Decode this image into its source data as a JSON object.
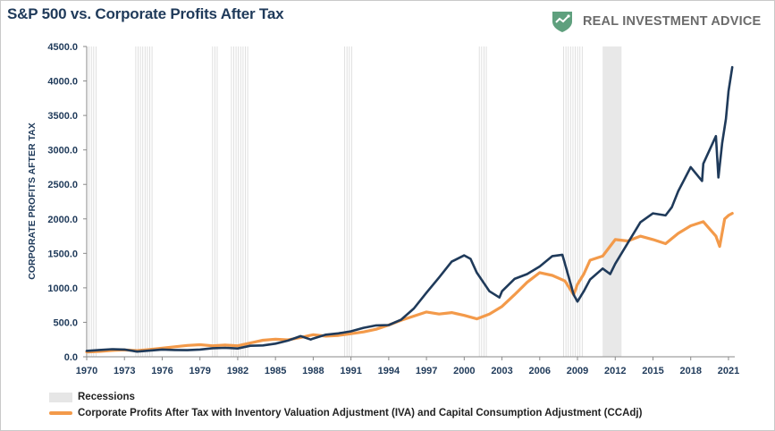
{
  "header": {
    "title": "S&P 500 vs. Corporate Profits After Tax",
    "brand": "REAL INVESTMENT ADVICE"
  },
  "colors": {
    "sp500": "#1f3a5a",
    "profits": "#f39a4a",
    "recession": "#e8e8e8",
    "brand_green": "#5fa07e"
  },
  "chart_data": {
    "type": "line",
    "title": "S&P 500 vs. Corporate Profits After Tax",
    "ylabel": "CORPORATE PROFITS AFTER TAX",
    "xlabel": "",
    "ylim": [
      0,
      4500
    ],
    "xlim": [
      1970,
      2021.5
    ],
    "y_ticks": [
      "0.0",
      "500.0",
      "1000.0",
      "1500.0",
      "2000.0",
      "2500.0",
      "3000.0",
      "3500.0",
      "4000.0",
      "4500.0"
    ],
    "x_ticks": [
      "1970",
      "1973",
      "1976",
      "1979",
      "1982",
      "1985",
      "1988",
      "1991",
      "1994",
      "1997",
      "2000",
      "2003",
      "2006",
      "2009",
      "2012",
      "2015",
      "2018",
      "2021"
    ],
    "legend_position": "bottom-left",
    "grid": false,
    "recessions": [
      [
        1970.0,
        1970.9
      ],
      [
        1973.9,
        1975.2
      ],
      [
        1980.0,
        1980.5
      ],
      [
        1981.5,
        1982.9
      ],
      [
        1990.5,
        1991.2
      ],
      [
        2001.2,
        2001.9
      ],
      [
        2007.9,
        2009.5
      ],
      [
        2011.0,
        2012.5
      ]
    ],
    "series": [
      {
        "name": "",
        "color": "#1f3a5a",
        "points": [
          [
            1970,
            85
          ],
          [
            1971,
            98
          ],
          [
            1972,
            110
          ],
          [
            1973,
            105
          ],
          [
            1974,
            75
          ],
          [
            1975,
            90
          ],
          [
            1976,
            105
          ],
          [
            1977,
            98
          ],
          [
            1978,
            96
          ],
          [
            1979,
            105
          ],
          [
            1980,
            125
          ],
          [
            1981,
            130
          ],
          [
            1982,
            120
          ],
          [
            1983,
            160
          ],
          [
            1984,
            165
          ],
          [
            1985,
            190
          ],
          [
            1986,
            235
          ],
          [
            1987,
            300
          ],
          [
            1987.8,
            250
          ],
          [
            1988,
            265
          ],
          [
            1989,
            320
          ],
          [
            1990,
            340
          ],
          [
            1991,
            370
          ],
          [
            1992,
            420
          ],
          [
            1993,
            455
          ],
          [
            1994,
            460
          ],
          [
            1995,
            540
          ],
          [
            1996,
            700
          ],
          [
            1997,
            930
          ],
          [
            1998,
            1150
          ],
          [
            1999,
            1380
          ],
          [
            2000,
            1470
          ],
          [
            2000.5,
            1420
          ],
          [
            2001,
            1220
          ],
          [
            2002,
            950
          ],
          [
            2002.8,
            860
          ],
          [
            2003,
            950
          ],
          [
            2004,
            1130
          ],
          [
            2005,
            1200
          ],
          [
            2006,
            1310
          ],
          [
            2007,
            1460
          ],
          [
            2007.8,
            1480
          ],
          [
            2008,
            1350
          ],
          [
            2008.7,
            900
          ],
          [
            2009,
            800
          ],
          [
            2009.5,
            950
          ],
          [
            2010,
            1120
          ],
          [
            2011,
            1280
          ],
          [
            2011.6,
            1200
          ],
          [
            2012,
            1350
          ],
          [
            2013,
            1650
          ],
          [
            2014,
            1950
          ],
          [
            2015,
            2080
          ],
          [
            2016,
            2050
          ],
          [
            2016.5,
            2170
          ],
          [
            2017,
            2400
          ],
          [
            2018,
            2750
          ],
          [
            2018.9,
            2550
          ],
          [
            2019,
            2800
          ],
          [
            2020,
            3200
          ],
          [
            2020.2,
            2600
          ],
          [
            2020.5,
            3100
          ],
          [
            2020.8,
            3450
          ],
          [
            2021,
            3850
          ],
          [
            2021.3,
            4200
          ]
        ]
      },
      {
        "name": "Corporate Profits After Tax with Inventory Valuation Adjustment (IVA) and Capital Consumption Adjustment (CCAdj)",
        "color": "#f39a4a",
        "points": [
          [
            1970,
            70
          ],
          [
            1971,
            78
          ],
          [
            1972,
            92
          ],
          [
            1973,
            100
          ],
          [
            1974,
            90
          ],
          [
            1975,
            105
          ],
          [
            1976,
            125
          ],
          [
            1977,
            145
          ],
          [
            1978,
            165
          ],
          [
            1979,
            175
          ],
          [
            1980,
            160
          ],
          [
            1981,
            170
          ],
          [
            1982,
            160
          ],
          [
            1983,
            200
          ],
          [
            1984,
            240
          ],
          [
            1985,
            255
          ],
          [
            1986,
            245
          ],
          [
            1987,
            280
          ],
          [
            1988,
            320
          ],
          [
            1989,
            300
          ],
          [
            1990,
            310
          ],
          [
            1991,
            335
          ],
          [
            1992,
            360
          ],
          [
            1993,
            400
          ],
          [
            1994,
            460
          ],
          [
            1995,
            530
          ],
          [
            1996,
            590
          ],
          [
            1997,
            650
          ],
          [
            1998,
            620
          ],
          [
            1999,
            640
          ],
          [
            2000,
            600
          ],
          [
            2001,
            550
          ],
          [
            2002,
            620
          ],
          [
            2003,
            730
          ],
          [
            2004,
            900
          ],
          [
            2005,
            1080
          ],
          [
            2006,
            1220
          ],
          [
            2007,
            1180
          ],
          [
            2008,
            1100
          ],
          [
            2008.7,
            900
          ],
          [
            2009,
            1050
          ],
          [
            2009.5,
            1200
          ],
          [
            2010,
            1400
          ],
          [
            2011,
            1460
          ],
          [
            2012,
            1700
          ],
          [
            2013,
            1680
          ],
          [
            2014,
            1750
          ],
          [
            2015,
            1700
          ],
          [
            2016,
            1640
          ],
          [
            2017,
            1790
          ],
          [
            2018,
            1900
          ],
          [
            2019,
            1960
          ],
          [
            2020,
            1750
          ],
          [
            2020.3,
            1600
          ],
          [
            2020.7,
            2000
          ],
          [
            2021,
            2050
          ],
          [
            2021.3,
            2080
          ]
        ]
      }
    ]
  },
  "legend": {
    "recessions_label": "Recessions",
    "profits_label": "Corporate Profits After Tax with Inventory Valuation Adjustment (IVA) and Capital Consumption Adjustment (CCAdj)"
  }
}
